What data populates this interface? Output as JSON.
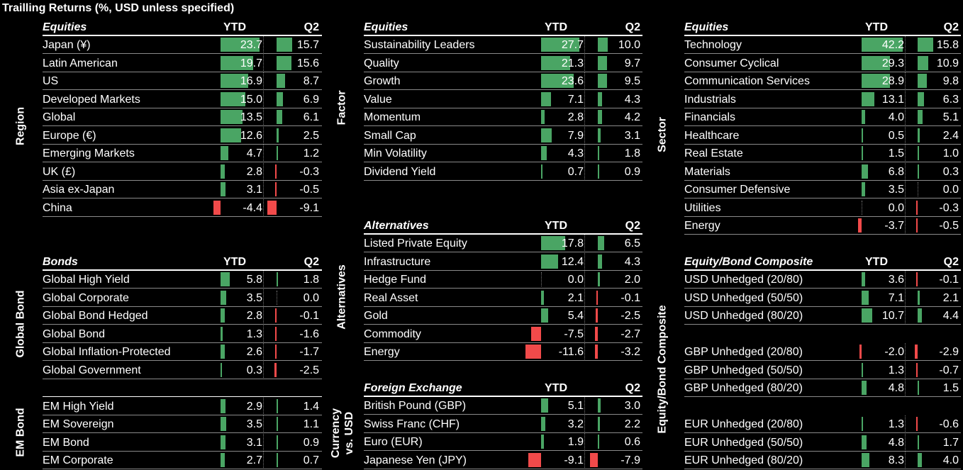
{
  "title": "Trailling Returns (%, USD unless specified)",
  "colors": {
    "positive": "#4aa564",
    "negative": "#f14a4a"
  },
  "columns": {
    "ytd": "YTD",
    "q2": "Q2"
  },
  "side_labels": {
    "region": "Region",
    "global_bond": "Global Bond",
    "em_bond": "EM Bond",
    "factor": "Factor",
    "alternatives": "Alternatives",
    "currency": "Currency vs. USD",
    "sector": "Sector",
    "composite": "Equity/Bond Composite"
  },
  "tables": {
    "region": {
      "header": "Equities",
      "rows": [
        {
          "name": "Japan (¥)",
          "ytd": "23.7",
          "q2": "15.7"
        },
        {
          "name": "Latin American",
          "ytd": "19.7",
          "q2": "15.6"
        },
        {
          "name": "US",
          "ytd": "16.9",
          "q2": "8.7"
        },
        {
          "name": "Developed Markets",
          "ytd": "15.0",
          "q2": "6.9"
        },
        {
          "name": "Global",
          "ytd": "13.5",
          "q2": "6.1"
        },
        {
          "name": "Europe (€)",
          "ytd": "12.6",
          "q2": "2.5"
        },
        {
          "name": "Emerging Markets",
          "ytd": "4.7",
          "q2": "1.2"
        },
        {
          "name": "UK (£)",
          "ytd": "2.8",
          "q2": "-0.3"
        },
        {
          "name": "Asia ex-Japan",
          "ytd": "3.1",
          "q2": "-0.5"
        },
        {
          "name": "China",
          "ytd": "-4.4",
          "q2": "-9.1"
        }
      ]
    },
    "bonds": {
      "header": "Bonds",
      "rows": [
        {
          "name": "Global High Yield",
          "ytd": "5.8",
          "q2": "1.8"
        },
        {
          "name": "Global Corporate",
          "ytd": "3.5",
          "q2": "0.0"
        },
        {
          "name": "Global Bond Hedged",
          "ytd": "2.8",
          "q2": "-0.1"
        },
        {
          "name": "Global Bond",
          "ytd": "1.3",
          "q2": "-1.6"
        },
        {
          "name": "Global Inflation-Protected",
          "ytd": "2.6",
          "q2": "-1.7"
        },
        {
          "name": "Global Government",
          "ytd": "0.3",
          "q2": "-2.5"
        }
      ]
    },
    "em_bond": {
      "header": "",
      "rows": [
        {
          "name": "EM High Yield",
          "ytd": "2.9",
          "q2": "1.4"
        },
        {
          "name": "EM Sovereign",
          "ytd": "3.5",
          "q2": "1.1"
        },
        {
          "name": "EM Bond",
          "ytd": "3.1",
          "q2": "0.9"
        },
        {
          "name": "EM Corporate",
          "ytd": "2.7",
          "q2": "0.7"
        }
      ]
    },
    "factor": {
      "header": "Equities",
      "rows": [
        {
          "name": "Sustainability Leaders",
          "ytd": "27.7",
          "q2": "10.0"
        },
        {
          "name": "Quality",
          "ytd": "21.3",
          "q2": "9.7"
        },
        {
          "name": "Growth",
          "ytd": "23.6",
          "q2": "9.5"
        },
        {
          "name": "Value",
          "ytd": "7.1",
          "q2": "4.3"
        },
        {
          "name": "Momentum",
          "ytd": "2.8",
          "q2": "4.2"
        },
        {
          "name": "Small Cap",
          "ytd": "7.9",
          "q2": "3.1"
        },
        {
          "name": "Min Volatility",
          "ytd": "4.3",
          "q2": "1.8"
        },
        {
          "name": "Dividend Yield",
          "ytd": "0.7",
          "q2": "0.9"
        }
      ]
    },
    "alternatives": {
      "header": "Alternatives",
      "rows": [
        {
          "name": "Listed Private Equity",
          "ytd": "17.8",
          "q2": "6.5"
        },
        {
          "name": "Infrastructure",
          "ytd": "12.4",
          "q2": "4.3"
        },
        {
          "name": "Hedge Fund",
          "ytd": "0.0",
          "q2": "2.0"
        },
        {
          "name": "Real Asset",
          "ytd": "2.1",
          "q2": "-0.1"
        },
        {
          "name": "Gold",
          "ytd": "5.4",
          "q2": "-2.5"
        },
        {
          "name": "Commodity",
          "ytd": "-7.5",
          "q2": "-2.7"
        },
        {
          "name": "Energy",
          "ytd": "-11.6",
          "q2": "-3.2"
        }
      ]
    },
    "fx": {
      "header": "Foreign Exchange",
      "rows": [
        {
          "name": "British Pound (GBP)",
          "ytd": "5.1",
          "q2": "3.0"
        },
        {
          "name": "Swiss Franc (CHF)",
          "ytd": "3.2",
          "q2": "2.2"
        },
        {
          "name": "Euro (EUR)",
          "ytd": "1.9",
          "q2": "0.6"
        },
        {
          "name": "Japanese Yen (JPY)",
          "ytd": "-9.1",
          "q2": "-7.9"
        }
      ]
    },
    "sector": {
      "header": "Equities",
      "rows": [
        {
          "name": "Technology",
          "ytd": "42.2",
          "q2": "15.8"
        },
        {
          "name": "Consumer Cyclical",
          "ytd": "29.3",
          "q2": "10.9"
        },
        {
          "name": "Communication Services",
          "ytd": "28.9",
          "q2": "9.8"
        },
        {
          "name": "Industrials",
          "ytd": "13.1",
          "q2": "6.3"
        },
        {
          "name": "Financials",
          "ytd": "4.0",
          "q2": "5.1"
        },
        {
          "name": "Healthcare",
          "ytd": "0.5",
          "q2": "2.4"
        },
        {
          "name": "Real Estate",
          "ytd": "1.5",
          "q2": "1.0"
        },
        {
          "name": "Materials",
          "ytd": "6.8",
          "q2": "0.3"
        },
        {
          "name": "Consumer Defensive",
          "ytd": "3.5",
          "q2": "0.0"
        },
        {
          "name": "Utilities",
          "ytd": "0.0",
          "q2": "-0.3"
        },
        {
          "name": "Energy",
          "ytd": "-3.7",
          "q2": "-0.5"
        }
      ]
    },
    "composite": {
      "header": "Equity/Bond Composite",
      "rows": [
        {
          "name": "USD Unhedged (20/80)",
          "ytd": "3.6",
          "q2": "-0.1"
        },
        {
          "name": "USD Unhedged (50/50)",
          "ytd": "7.1",
          "q2": "2.1"
        },
        {
          "name": "USD Unhedged (80/20)",
          "ytd": "10.7",
          "q2": "4.4"
        },
        {
          "name": "",
          "ytd": "",
          "q2": ""
        },
        {
          "name": "GBP Unhedged (20/80)",
          "ytd": "-2.0",
          "q2": "-2.9"
        },
        {
          "name": "GBP Unhedged (50/50)",
          "ytd": "1.3",
          "q2": "-0.7"
        },
        {
          "name": "GBP Unhedged (80/20)",
          "ytd": "4.8",
          "q2": "1.5"
        },
        {
          "name": "",
          "ytd": "",
          "q2": ""
        },
        {
          "name": "EUR Unhedged (20/80)",
          "ytd": "1.3",
          "q2": "-0.6"
        },
        {
          "name": "EUR Unhedged (50/50)",
          "ytd": "4.8",
          "q2": "1.7"
        },
        {
          "name": "EUR Unhedged (80/20)",
          "ytd": "8.3",
          "q2": "4.0"
        }
      ]
    }
  }
}
